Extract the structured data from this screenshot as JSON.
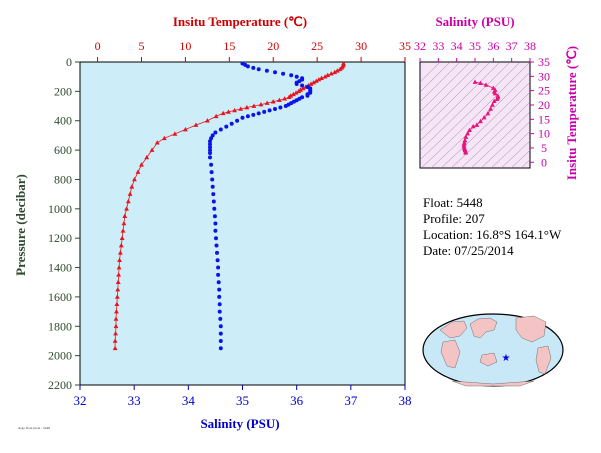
{
  "chart_data": [
    {
      "type": "scatter",
      "top_axis_label": "Insitu Temperature (℃)",
      "bottom_axis_label": "Salinity (PSU)",
      "left_axis_label": "Pressure (decibar)",
      "temperature_ticks": [
        "0",
        "5",
        "10",
        "15",
        "20",
        "25",
        "30",
        "35"
      ],
      "salinity_ticks": [
        "32",
        "33",
        "34",
        "35",
        "36",
        "37",
        "38"
      ],
      "pressure_ticks": [
        "0",
        "200",
        "400",
        "600",
        "800",
        "1000",
        "1200",
        "1400",
        "1600",
        "1800",
        "2000",
        "2200"
      ],
      "temperature_range": [
        -2,
        35
      ],
      "salinity_range": [
        32,
        38
      ],
      "pressure_range": [
        0,
        2200
      ],
      "grid": false,
      "colors": {
        "temperature": "#e8141e",
        "salinity": "#0a14e6",
        "background": "#cdeef8",
        "temp_axis": "#cc0000",
        "sal_axis": "#0000cc",
        "pressure_axis": "#2e4a2e"
      },
      "series": [
        {
          "marker": "triangle",
          "color": "#e8141e",
          "points": [
            [
              28.0,
              10
            ],
            [
              28.0,
              20
            ],
            [
              27.9,
              30
            ],
            [
              27.8,
              40
            ],
            [
              27.6,
              50
            ],
            [
              27.3,
              60
            ],
            [
              27.0,
              70
            ],
            [
              26.6,
              80
            ],
            [
              26.2,
              90
            ],
            [
              25.9,
              100
            ],
            [
              25.5,
              110
            ],
            [
              25.2,
              120
            ],
            [
              24.9,
              130
            ],
            [
              24.6,
              140
            ],
            [
              24.3,
              150
            ],
            [
              24.0,
              160
            ],
            [
              23.7,
              170
            ],
            [
              23.4,
              180
            ],
            [
              23.1,
              190
            ],
            [
              22.9,
              200
            ],
            [
              22.6,
              210
            ],
            [
              22.3,
              220
            ],
            [
              22.0,
              230
            ],
            [
              21.8,
              240
            ],
            [
              21.3,
              250
            ],
            [
              20.7,
              260
            ],
            [
              20.0,
              270
            ],
            [
              19.3,
              280
            ],
            [
              18.6,
              290
            ],
            [
              17.8,
              300
            ],
            [
              17.0,
              310
            ],
            [
              16.3,
              320
            ],
            [
              15.6,
              330
            ],
            [
              14.9,
              340
            ],
            [
              14.3,
              350
            ],
            [
              13.5,
              370
            ],
            [
              12.5,
              400
            ],
            [
              11.2,
              430
            ],
            [
              10.0,
              460
            ],
            [
              8.8,
              490
            ],
            [
              7.6,
              520
            ],
            [
              6.8,
              550
            ],
            [
              6.2,
              600
            ],
            [
              5.6,
              650
            ],
            [
              5.0,
              700
            ],
            [
              4.6,
              750
            ],
            [
              4.2,
              800
            ],
            [
              3.9,
              850
            ],
            [
              3.7,
              900
            ],
            [
              3.5,
              950
            ],
            [
              3.3,
              1000
            ],
            [
              3.1,
              1050
            ],
            [
              3.0,
              1100
            ],
            [
              2.9,
              1150
            ],
            [
              2.8,
              1200
            ],
            [
              2.7,
              1250
            ],
            [
              2.6,
              1300
            ],
            [
              2.5,
              1350
            ],
            [
              2.45,
              1400
            ],
            [
              2.4,
              1450
            ],
            [
              2.35,
              1500
            ],
            [
              2.3,
              1550
            ],
            [
              2.25,
              1600
            ],
            [
              2.2,
              1650
            ],
            [
              2.15,
              1700
            ],
            [
              2.1,
              1750
            ],
            [
              2.1,
              1800
            ],
            [
              2.05,
              1850
            ],
            [
              2.0,
              1900
            ],
            [
              2.0,
              1950
            ]
          ]
        },
        {
          "marker": "circle",
          "color": "#0a14e6",
          "points": [
            [
              35.0,
              10
            ],
            [
              35.05,
              20
            ],
            [
              35.1,
              30
            ],
            [
              35.2,
              40
            ],
            [
              35.3,
              50
            ],
            [
              35.45,
              60
            ],
            [
              35.6,
              70
            ],
            [
              35.75,
              80
            ],
            [
              35.9,
              90
            ],
            [
              36.0,
              100
            ],
            [
              36.1,
              110
            ],
            [
              36.1,
              120
            ],
            [
              36.05,
              130
            ],
            [
              36.0,
              140
            ],
            [
              36.0,
              150
            ],
            [
              36.1,
              160
            ],
            [
              36.2,
              170
            ],
            [
              36.25,
              180
            ],
            [
              36.25,
              190
            ],
            [
              36.25,
              200
            ],
            [
              36.25,
              210
            ],
            [
              36.2,
              220
            ],
            [
              36.2,
              230
            ],
            [
              36.1,
              240
            ],
            [
              36.05,
              250
            ],
            [
              36.0,
              260
            ],
            [
              35.95,
              270
            ],
            [
              35.9,
              280
            ],
            [
              35.85,
              290
            ],
            [
              35.8,
              300
            ],
            [
              35.7,
              310
            ],
            [
              35.6,
              320
            ],
            [
              35.5,
              330
            ],
            [
              35.4,
              340
            ],
            [
              35.3,
              350
            ],
            [
              35.2,
              360
            ],
            [
              35.1,
              370
            ],
            [
              35.0,
              380
            ],
            [
              34.9,
              400
            ],
            [
              34.8,
              420
            ],
            [
              34.7,
              440
            ],
            [
              34.6,
              460
            ],
            [
              34.5,
              480
            ],
            [
              34.45,
              500
            ],
            [
              34.42,
              520
            ],
            [
              34.4,
              540
            ],
            [
              34.4,
              560
            ],
            [
              34.4,
              580
            ],
            [
              34.4,
              600
            ],
            [
              34.4,
              620
            ],
            [
              34.4,
              650
            ],
            [
              34.42,
              700
            ],
            [
              34.43,
              750
            ],
            [
              34.44,
              800
            ],
            [
              34.45,
              850
            ],
            [
              34.46,
              900
            ],
            [
              34.47,
              950
            ],
            [
              34.48,
              1000
            ],
            [
              34.49,
              1050
            ],
            [
              34.5,
              1100
            ],
            [
              34.5,
              1150
            ],
            [
              34.51,
              1200
            ],
            [
              34.52,
              1250
            ],
            [
              34.53,
              1300
            ],
            [
              34.54,
              1350
            ],
            [
              34.55,
              1400
            ],
            [
              34.55,
              1450
            ],
            [
              34.56,
              1500
            ],
            [
              34.57,
              1550
            ],
            [
              34.57,
              1600
            ],
            [
              34.58,
              1650
            ],
            [
              34.58,
              1700
            ],
            [
              34.59,
              1750
            ],
            [
              34.6,
              1800
            ],
            [
              34.6,
              1850
            ],
            [
              34.6,
              1900
            ],
            [
              34.6,
              1950
            ]
          ]
        }
      ]
    },
    {
      "type": "scatter",
      "top_axis_label": "Salinity (PSU)",
      "right_axis_label": "Insitu Temperature (℃)",
      "salinity_ticks": [
        "32",
        "33",
        "34",
        "35",
        "36",
        "37",
        "38"
      ],
      "temperature_ticks": [
        "0",
        "5",
        "10",
        "15",
        "20",
        "25",
        "30",
        "35"
      ],
      "salinity_range": [
        32,
        38
      ],
      "temperature_range": [
        -2,
        35
      ],
      "colors": {
        "points": "#e8147a",
        "axis": "#cc00aa",
        "background": "#f7e4f7",
        "density_lines": "#7f8aa0"
      },
      "series": [
        {
          "marker": "triangle",
          "color": "#e8147a",
          "points": [
            [
              35.0,
              28.0
            ],
            [
              35.3,
              27.6
            ],
            [
              35.6,
              27.0
            ],
            [
              36.0,
              25.9
            ],
            [
              36.1,
              25.2
            ],
            [
              36.05,
              24.6
            ],
            [
              36.1,
              24.0
            ],
            [
              36.25,
              23.1
            ],
            [
              36.25,
              22.6
            ],
            [
              36.2,
              22.0
            ],
            [
              36.05,
              21.3
            ],
            [
              35.95,
              20.0
            ],
            [
              35.85,
              18.6
            ],
            [
              35.7,
              17.0
            ],
            [
              35.5,
              15.6
            ],
            [
              35.3,
              14.3
            ],
            [
              35.1,
              13.0
            ],
            [
              34.9,
              12.5
            ],
            [
              34.7,
              11.2
            ],
            [
              34.6,
              10.0
            ],
            [
              34.5,
              8.8
            ],
            [
              34.45,
              7.6
            ],
            [
              34.42,
              6.8
            ],
            [
              34.4,
              6.2
            ],
            [
              34.4,
              5.6
            ],
            [
              34.42,
              5.0
            ],
            [
              34.44,
              4.6
            ],
            [
              34.46,
              4.2
            ],
            [
              34.48,
              3.7
            ],
            [
              34.5,
              3.3
            ]
          ]
        }
      ]
    }
  ],
  "info": {
    "float": "Float:  5448",
    "profile": "Profile:  207",
    "location": "Location:  16.8°S  164.1°W",
    "date": "Date:  07/25/2014"
  },
  "footer": "Argo float plots - 5448"
}
